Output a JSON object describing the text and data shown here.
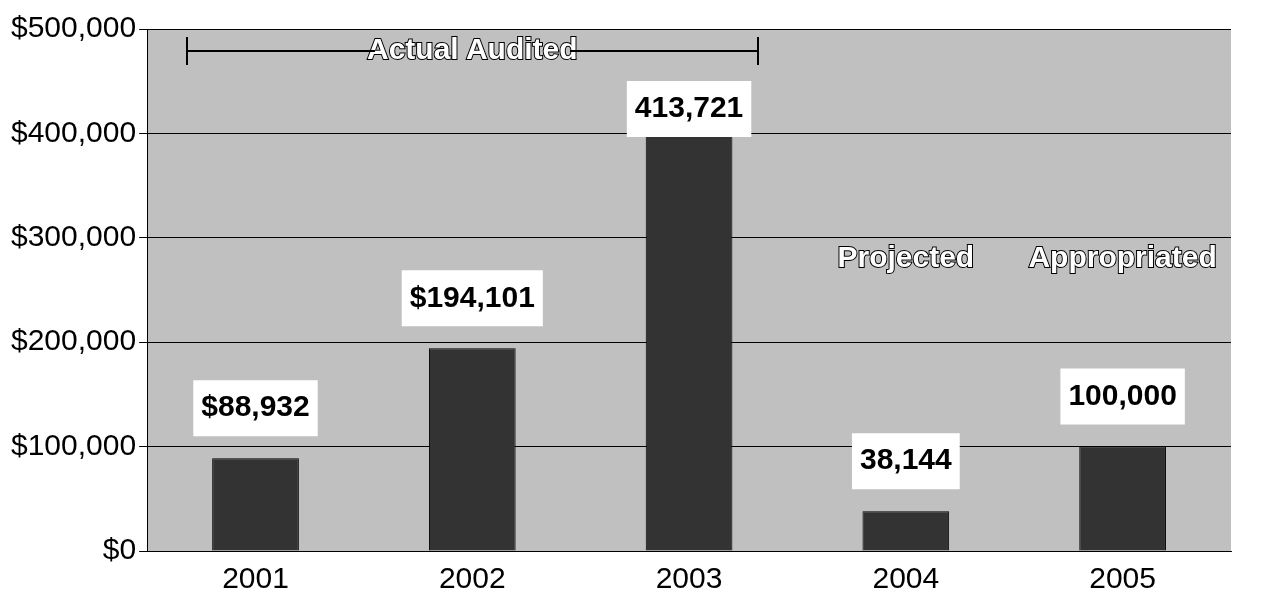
{
  "chart_data": {
    "type": "bar",
    "categories": [
      "2001",
      "2002",
      "2003",
      "2004",
      "2005"
    ],
    "values": [
      88932,
      194101,
      413721,
      38144,
      100000
    ],
    "value_labels": [
      "$88,932",
      "$194,101",
      "413,721",
      "38,144",
      "100,000"
    ],
    "color": "#333333",
    "ylim": [
      0,
      500000
    ],
    "yticks": [
      {
        "value": 0,
        "label": "$0"
      },
      {
        "value": 100000,
        "label": "$100,000"
      },
      {
        "value": 200000,
        "label": "$200,000"
      },
      {
        "value": 300000,
        "label": "$300,000"
      },
      {
        "value": 400000,
        "label": "$400,000"
      },
      {
        "value": 500000,
        "label": "$500,000"
      }
    ],
    "grid": "y",
    "legend": false,
    "annotations": [
      "Actual Audited",
      "Projected",
      "Appropriated"
    ]
  }
}
